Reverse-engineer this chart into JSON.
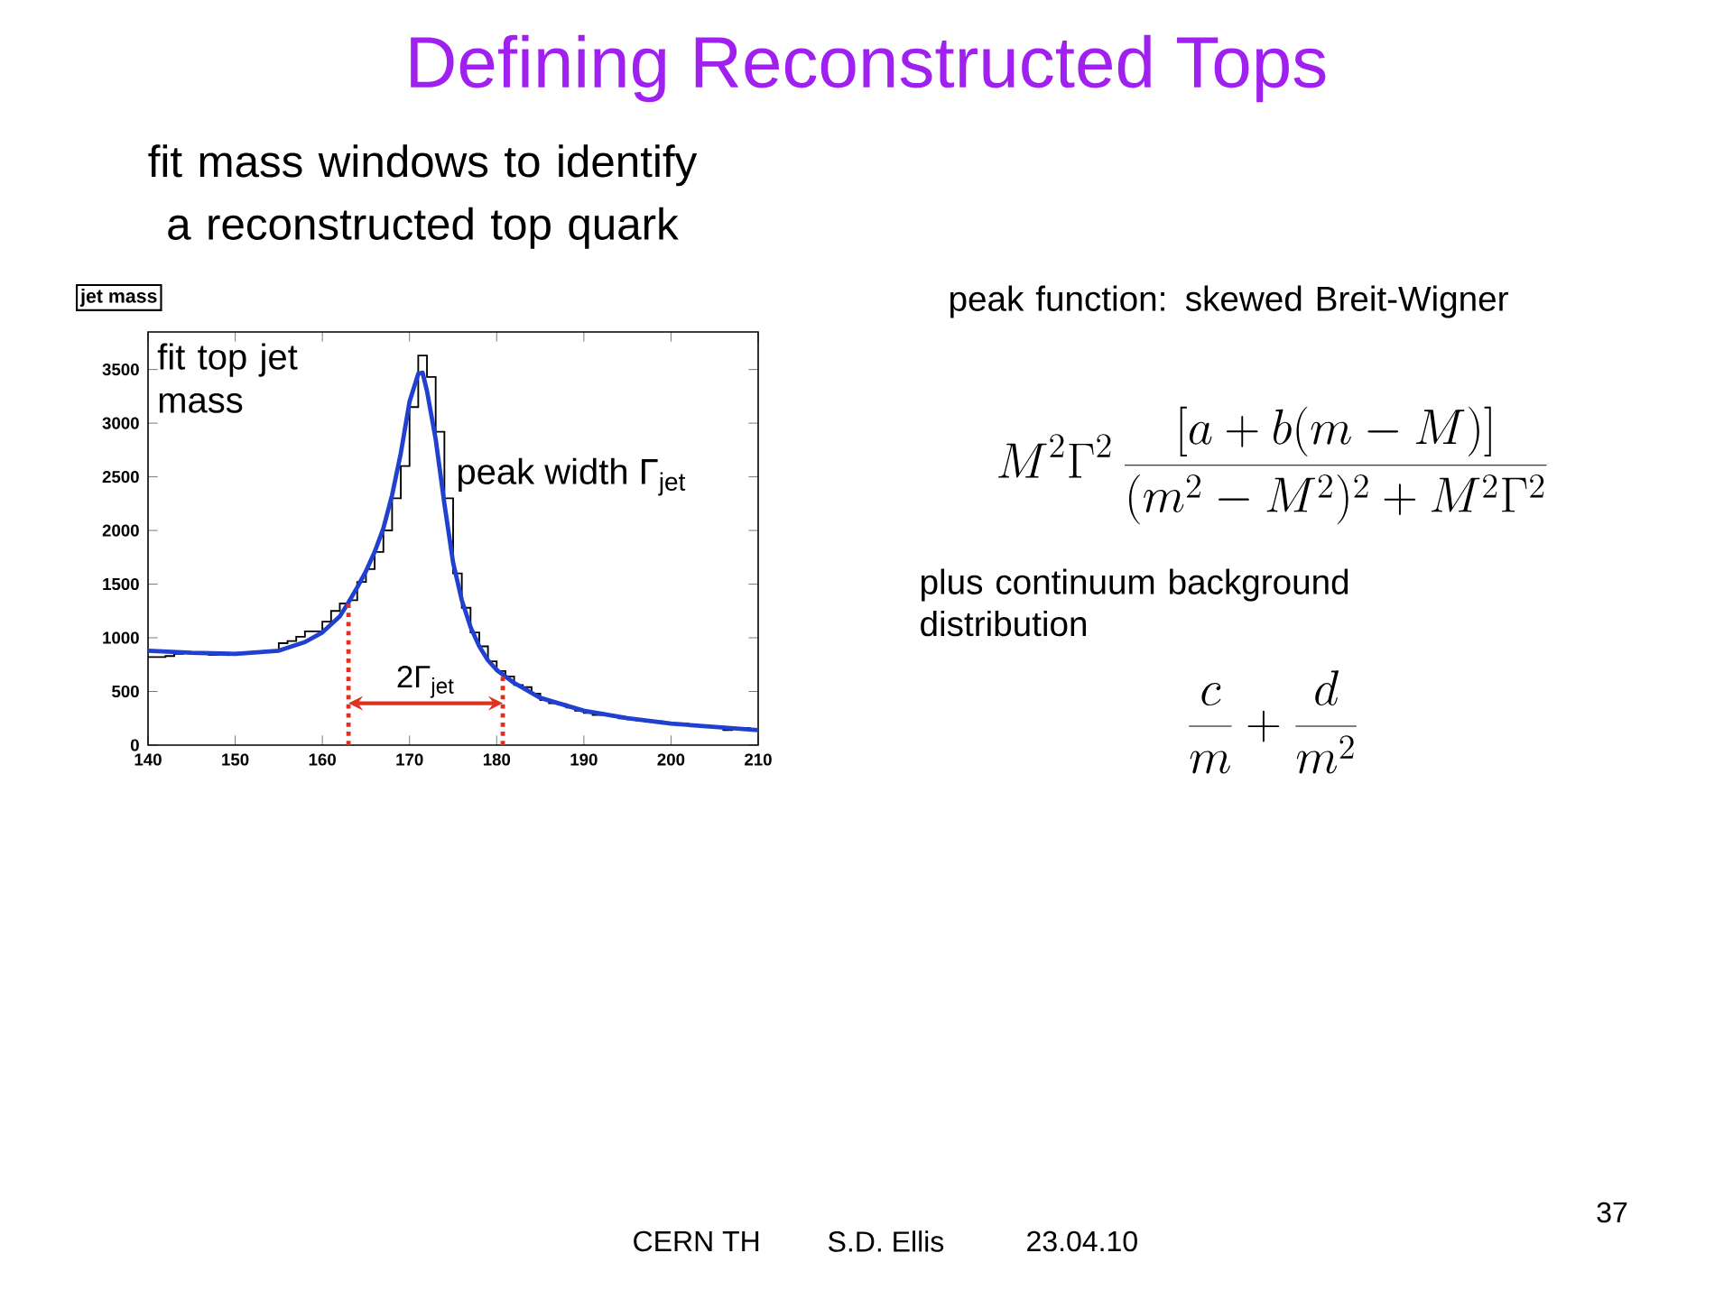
{
  "chart_data": {
    "type": "histogram",
    "title": "Defining Reconstructed Tops",
    "subtitle": "fit mass windows to identify a reconstructed top quark",
    "series": [
      {
        "color": "#000000",
        "bins": [
          140,
          141,
          142,
          143,
          144,
          145,
          146,
          147,
          148,
          149,
          150,
          151,
          152,
          153,
          154,
          155,
          156,
          157,
          158,
          159,
          160,
          161,
          162,
          163,
          164,
          165,
          166,
          167,
          168,
          169,
          170,
          171,
          172,
          173,
          174,
          175,
          176,
          177,
          178,
          179,
          180,
          181,
          182,
          183,
          184,
          185,
          186,
          187,
          188,
          189,
          190,
          191,
          192,
          193,
          194,
          195,
          196,
          197,
          198,
          199,
          200,
          201,
          202,
          203,
          204,
          205,
          206,
          207,
          208,
          209,
          210
        ],
        "values": [
          820,
          820,
          830,
          850,
          860,
          860,
          850,
          840,
          850,
          850,
          860,
          860,
          870,
          870,
          880,
          950,
          970,
          1010,
          1060,
          1060,
          1150,
          1250,
          1320,
          1350,
          1520,
          1640,
          1800,
          2000,
          2300,
          2600,
          3150,
          3630,
          3430,
          2920,
          2300,
          1600,
          1280,
          1050,
          920,
          780,
          690,
          640,
          560,
          540,
          480,
          420,
          390,
          380,
          350,
          320,
          300,
          280,
          280,
          270,
          250,
          240,
          230,
          220,
          220,
          210,
          200,
          200,
          190,
          180,
          170,
          170,
          140,
          160,
          160,
          150
        ]
      },
      {
        "type": "line",
        "color": "#2040d0",
        "x": [
          140,
          145,
          150,
          155,
          158,
          160,
          162,
          163,
          164,
          165,
          166,
          167,
          168,
          169,
          170,
          171,
          171.5,
          172,
          173,
          174,
          175,
          176,
          177,
          178,
          179,
          180,
          182,
          185,
          190,
          195,
          200,
          205,
          210
        ],
        "values": [
          880,
          860,
          850,
          880,
          960,
          1050,
          1200,
          1330,
          1470,
          1620,
          1800,
          2020,
          2330,
          2720,
          3200,
          3460,
          3470,
          3300,
          2850,
          2250,
          1700,
          1350,
          1100,
          920,
          790,
          700,
          580,
          440,
          320,
          250,
          200,
          170,
          140
        ]
      }
    ],
    "xlim": [
      140,
      210
    ],
    "xticks": [
      140,
      150,
      160,
      170,
      180,
      190,
      200,
      210
    ],
    "ylim": [
      0,
      3850
    ],
    "yticks": [
      0,
      500,
      1000,
      1500,
      2000,
      2500,
      3000,
      3500
    ],
    "ref_lines": [
      {
        "axis": "x",
        "value": 163,
        "color": "#e03020",
        "line_style": "dotted"
      },
      {
        "axis": "x",
        "value": 180.7,
        "color": "#e03020",
        "line_style": "dotted"
      }
    ],
    "annotations": [
      "jet mass",
      "fit top jet mass",
      "peak width Γ$_{jet}$",
      "2Γ$_{jet}$",
      "peak function: skewed Breit-Wigner",
      "M^2\\Gamma^2\\,\\frac{[a+b(m-M)]}{(m^2-M^2)^2+M^2\\Gamma^2}",
      "plus continuum background distribution",
      "\\frac{c}{m}+\\frac{d}{m^2}",
      "CERN TH",
      "S.D. Ellis",
      "23.04.10",
      "37"
    ]
  }
}
